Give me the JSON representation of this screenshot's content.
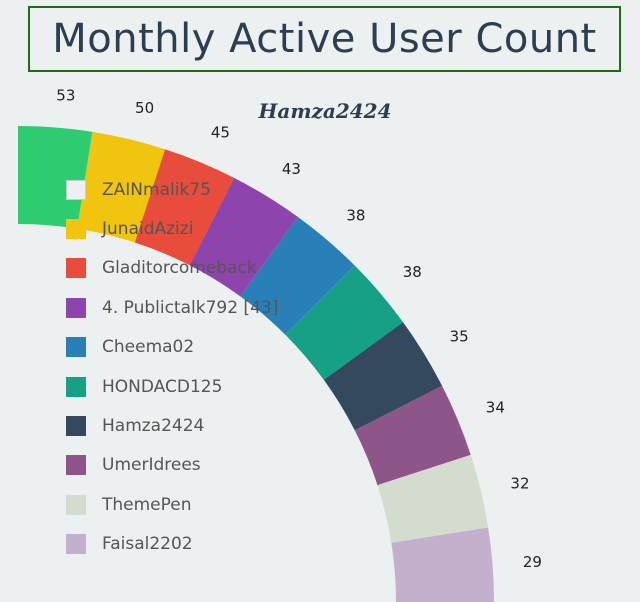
{
  "title": "Monthly Active User Count",
  "chart_data": {
    "type": "radial-bar",
    "subtitle": "Hamza2424",
    "categories": [
      "ZAINmalik75",
      "JunaidAzizi",
      "Gladitorcomeback",
      "Publictalk792",
      "Cheema02",
      "HONDACD125",
      "Hamza2424",
      "UmerIdrees",
      "ThemePen",
      "Faisal2202"
    ],
    "values": [
      53,
      50,
      45,
      43,
      38,
      38,
      35,
      34,
      32,
      29
    ],
    "colors": [
      "#2ecc71",
      "#f1c40f",
      "#e74c3c",
      "#8e44ad",
      "#2980b9",
      "#16a085",
      "#34495e",
      "#8e5688",
      "#d3dccf",
      "#c3b0cc"
    ],
    "legend": [
      {
        "label": "ZAINmalik75",
        "color": "#ecf0f1",
        "outline": "#c8cdd0"
      },
      {
        "label": "JunaidAzizi",
        "color": "#f1c40f"
      },
      {
        "label": "Gladitorcomeback",
        "color": "#e74c3c"
      },
      {
        "label": "4. Publictalk792 [43]",
        "color": "#8e44ad"
      },
      {
        "label": "Cheema02",
        "color": "#2980b9"
      },
      {
        "label": "HONDACD125",
        "color": "#16a085"
      },
      {
        "label": "Hamza2424",
        "color": "#34495e"
      },
      {
        "label": "UmerIdrees",
        "color": "#8e5688"
      },
      {
        "label": "ThemePen",
        "color": "#d3dccf"
      },
      {
        "label": "Faisal2202",
        "color": "#c3b0cc"
      }
    ]
  }
}
